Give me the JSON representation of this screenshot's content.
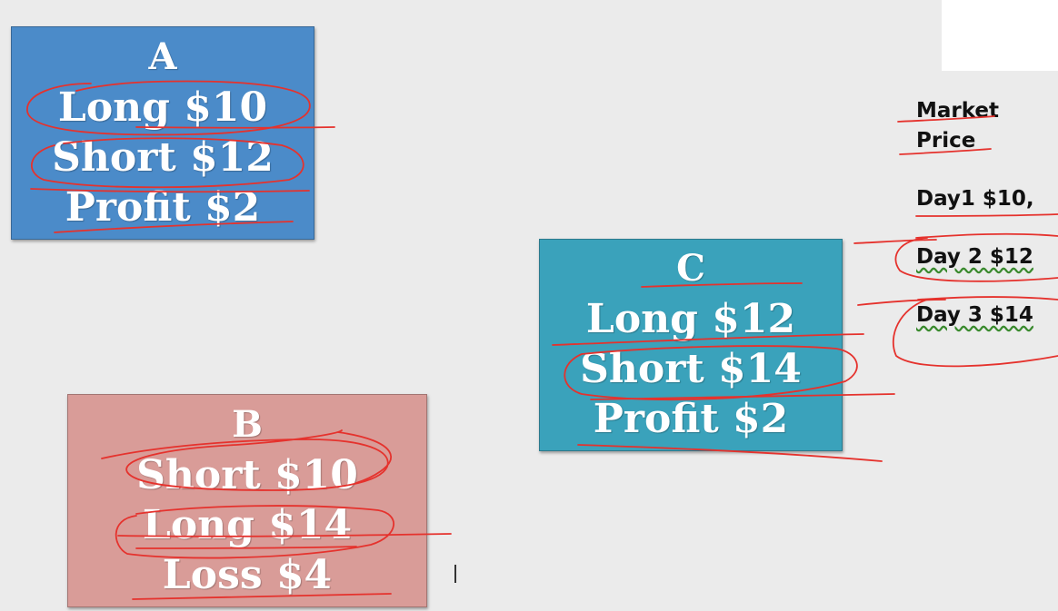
{
  "box_a": {
    "heading": "A",
    "lines": [
      "Long $10",
      "Short $12",
      "Profit $2"
    ],
    "color": "#4b8bc9"
  },
  "box_b": {
    "heading": "B",
    "lines": [
      "Short $10",
      "Long $14",
      "Loss $4"
    ],
    "color": "#d99c98"
  },
  "box_c": {
    "heading": "C",
    "lines": [
      "Long $12",
      "Short $14",
      "Profit $2"
    ],
    "color": "#3aa2bb"
  },
  "market": {
    "title_line1": "Market",
    "title_line2": "Price",
    "days": [
      "Day1 $10,",
      "Day 2 $12",
      "Day 3 $14"
    ]
  },
  "annotation_color": "#e5322d"
}
